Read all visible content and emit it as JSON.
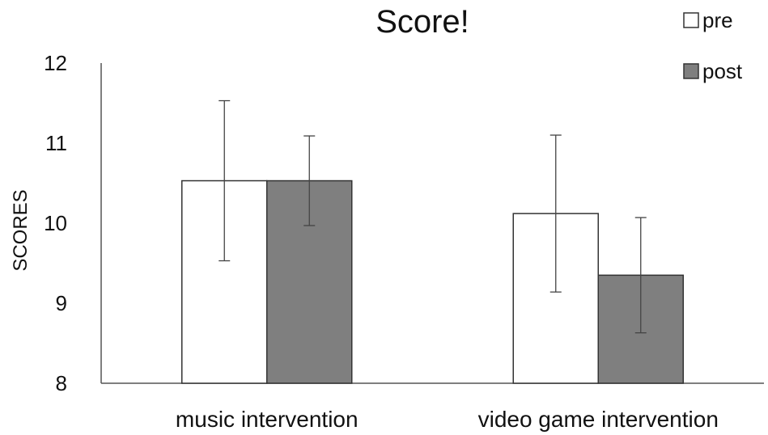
{
  "chart_data": {
    "type": "bar",
    "title": "Score!",
    "xlabel": "",
    "ylabel": "SCORES",
    "ylim": [
      8,
      12
    ],
    "yticks": [
      "8",
      "9",
      "10",
      "11",
      "12"
    ],
    "categories": [
      "music intervention",
      "video game intervention"
    ],
    "series": [
      {
        "name": "pre",
        "color": "#ffffff",
        "values": [
          10.53,
          10.12
        ],
        "error": [
          1.0,
          0.98
        ]
      },
      {
        "name": "post",
        "color": "#7f7f7f",
        "values": [
          10.53,
          9.35
        ],
        "error": [
          0.56,
          0.72
        ]
      }
    ],
    "legend_position": "top-right",
    "grid": false
  }
}
